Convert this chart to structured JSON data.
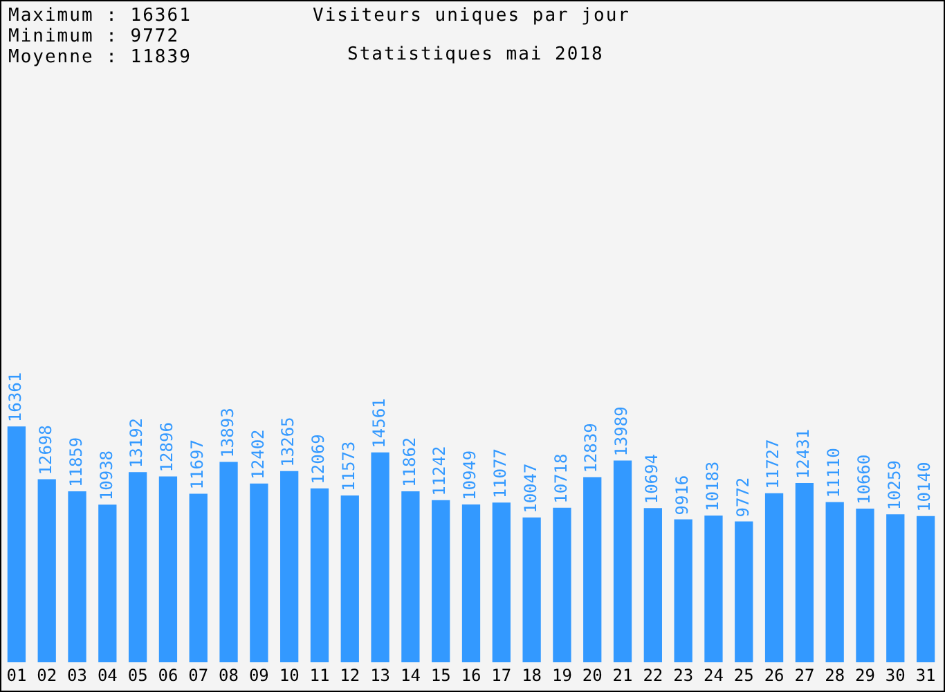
{
  "chart_data": {
    "type": "bar",
    "title": "Visiteurs uniques par jour",
    "subtitle": "Statistiques mai 2018",
    "annotations": [
      "Maximum : 16361",
      "Minimum : 9772",
      "Moyenne : 11839"
    ],
    "categories": [
      "01",
      "02",
      "03",
      "04",
      "05",
      "06",
      "07",
      "08",
      "09",
      "10",
      "11",
      "12",
      "13",
      "14",
      "15",
      "16",
      "17",
      "18",
      "19",
      "20",
      "21",
      "22",
      "23",
      "24",
      "25",
      "26",
      "27",
      "28",
      "29",
      "30",
      "31"
    ],
    "values": [
      16361,
      12698,
      11859,
      10938,
      13192,
      12896,
      11697,
      13893,
      12402,
      13265,
      12069,
      11573,
      14561,
      11862,
      11242,
      10949,
      11077,
      10047,
      10718,
      12839,
      13989,
      10694,
      9916,
      10183,
      9772,
      11727,
      12431,
      11110,
      10660,
      10259,
      10140
    ],
    "color": "#3399ff",
    "data_labels": true,
    "grid": false,
    "legend": false
  }
}
